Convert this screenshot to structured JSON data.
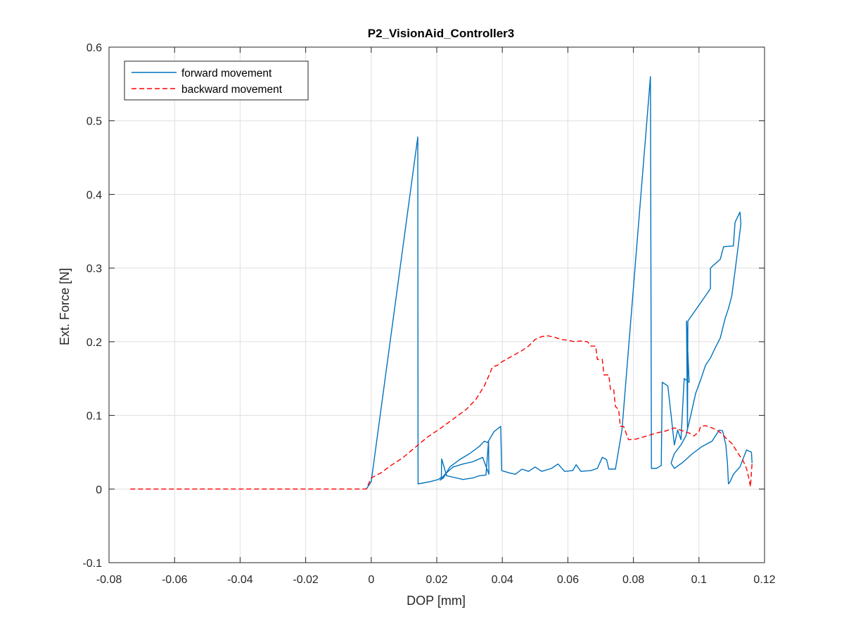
{
  "chart_data": {
    "type": "line",
    "title": "P2_VisionAid_Controller3",
    "xlabel": "DOP [mm]",
    "ylabel": "Ext. Force [N]",
    "xlim": [
      -0.08,
      0.12
    ],
    "ylim": [
      -0.1,
      0.6
    ],
    "xticks": [
      -0.08,
      -0.06,
      -0.04,
      -0.02,
      0,
      0.02,
      0.04,
      0.06,
      0.08,
      0.1,
      0.12
    ],
    "xtick_labels": [
      "-0.08",
      "-0.06",
      "-0.04",
      "-0.02",
      "0",
      "0.02",
      "0.04",
      "0.06",
      "0.08",
      "0.1",
      "0.12"
    ],
    "yticks": [
      -0.1,
      0,
      0.1,
      0.2,
      0.3,
      0.4,
      0.5,
      0.6
    ],
    "ytick_labels": [
      "-0.1",
      "0",
      "0.1",
      "0.2",
      "0.3",
      "0.4",
      "0.5",
      "0.6"
    ],
    "grid": true,
    "legend_position": "top-left",
    "series": [
      {
        "name": "forward movement",
        "color": "#0072BD",
        "style": "solid",
        "points": [
          [
            -0.0015,
            0
          ],
          [
            0,
            0.01
          ],
          [
            0.0142,
            0.478
          ],
          [
            0.0143,
            0.007
          ],
          [
            0.018,
            0.01
          ],
          [
            0.0205,
            0.013
          ],
          [
            0.0214,
            0.016
          ],
          [
            0.0215,
            0.041
          ],
          [
            0.023,
            0.018
          ],
          [
            0.025,
            0.016
          ],
          [
            0.028,
            0.013
          ],
          [
            0.031,
            0.015
          ],
          [
            0.033,
            0.018
          ],
          [
            0.035,
            0.019
          ],
          [
            0.0358,
            0.065
          ],
          [
            0.0359,
            0.02
          ],
          [
            0.034,
            0.043
          ],
          [
            0.031,
            0.037
          ],
          [
            0.028,
            0.034
          ],
          [
            0.025,
            0.03
          ],
          [
            0.0225,
            0.02
          ],
          [
            0.021,
            0.012
          ],
          [
            0.022,
            0.015
          ],
          [
            0.024,
            0.03
          ],
          [
            0.027,
            0.04
          ],
          [
            0.03,
            0.048
          ],
          [
            0.033,
            0.058
          ],
          [
            0.0345,
            0.065
          ],
          [
            0.0355,
            0.063
          ],
          [
            0.0375,
            0.078
          ],
          [
            0.0395,
            0.085
          ],
          [
            0.0398,
            0.025
          ],
          [
            0.042,
            0.022
          ],
          [
            0.044,
            0.02
          ],
          [
            0.046,
            0.027
          ],
          [
            0.048,
            0.024
          ],
          [
            0.05,
            0.03
          ],
          [
            0.052,
            0.024
          ],
          [
            0.055,
            0.028
          ],
          [
            0.057,
            0.034
          ],
          [
            0.059,
            0.024
          ],
          [
            0.0615,
            0.025
          ],
          [
            0.0625,
            0.033
          ],
          [
            0.064,
            0.024
          ],
          [
            0.067,
            0.025
          ],
          [
            0.069,
            0.028
          ],
          [
            0.0705,
            0.043
          ],
          [
            0.0718,
            0.04
          ],
          [
            0.0725,
            0.027
          ],
          [
            0.0745,
            0.027
          ],
          [
            0.0765,
            0.08
          ],
          [
            0.0852,
            0.56
          ],
          [
            0.0855,
            0.028
          ],
          [
            0.087,
            0.028
          ],
          [
            0.0885,
            0.032
          ],
          [
            0.0888,
            0.145
          ],
          [
            0.0905,
            0.14
          ],
          [
            0.0915,
            0.1
          ],
          [
            0.0925,
            0.06
          ],
          [
            0.0935,
            0.08
          ],
          [
            0.0945,
            0.067
          ],
          [
            0.0955,
            0.15
          ],
          [
            0.097,
            0.145
          ],
          [
            0.0962,
            0.228
          ],
          [
            0.0965,
            0.08
          ],
          [
            0.0966,
            0.228
          ],
          [
            0.1035,
            0.272
          ],
          [
            0.1035,
            0.3
          ],
          [
            0.1065,
            0.312
          ],
          [
            0.1075,
            0.329
          ],
          [
            0.1105,
            0.33
          ],
          [
            0.111,
            0.362
          ],
          [
            0.1125,
            0.376
          ],
          [
            0.1128,
            0.36
          ],
          [
            0.112,
            0.331
          ],
          [
            0.111,
            0.296
          ],
          [
            0.11,
            0.262
          ],
          [
            0.109,
            0.245
          ],
          [
            0.108,
            0.232
          ],
          [
            0.1065,
            0.205
          ],
          [
            0.105,
            0.192
          ],
          [
            0.1035,
            0.178
          ],
          [
            0.102,
            0.168
          ],
          [
            0.1005,
            0.148
          ],
          [
            0.099,
            0.13
          ],
          [
            0.0975,
            0.1
          ],
          [
            0.096,
            0.072
          ],
          [
            0.0945,
            0.06
          ],
          [
            0.0935,
            0.054
          ],
          [
            0.0925,
            0.048
          ],
          [
            0.092,
            0.042
          ],
          [
            0.0915,
            0.035
          ],
          [
            0.0925,
            0.028
          ],
          [
            0.095,
            0.036
          ],
          [
            0.098,
            0.048
          ],
          [
            0.101,
            0.058
          ],
          [
            0.104,
            0.065
          ],
          [
            0.1062,
            0.08
          ],
          [
            0.1072,
            0.079
          ],
          [
            0.1082,
            0.06
          ],
          [
            0.1087,
            0.035
          ],
          [
            0.109,
            0.007
          ],
          [
            0.1095,
            0.01
          ],
          [
            0.1105,
            0.02
          ],
          [
            0.1125,
            0.03
          ],
          [
            0.1145,
            0.053
          ],
          [
            0.116,
            0.05
          ],
          [
            0.1162,
            0.035
          ]
        ]
      },
      {
        "name": "backward movement",
        "color": "#FF0000",
        "style": "dashed",
        "points": [
          [
            -0.0735,
            0
          ],
          [
            -0.0015,
            0
          ],
          [
            0,
            0.015
          ],
          [
            0.003,
            0.022
          ],
          [
            0.006,
            0.032
          ],
          [
            0.0095,
            0.042
          ],
          [
            0.013,
            0.055
          ],
          [
            0.017,
            0.07
          ],
          [
            0.021,
            0.082
          ],
          [
            0.025,
            0.095
          ],
          [
            0.029,
            0.108
          ],
          [
            0.032,
            0.122
          ],
          [
            0.0345,
            0.14
          ],
          [
            0.036,
            0.155
          ],
          [
            0.037,
            0.166
          ],
          [
            0.0385,
            0.168
          ],
          [
            0.04,
            0.173
          ],
          [
            0.042,
            0.178
          ],
          [
            0.044,
            0.183
          ],
          [
            0.046,
            0.188
          ],
          [
            0.048,
            0.194
          ],
          [
            0.05,
            0.203
          ],
          [
            0.052,
            0.207
          ],
          [
            0.054,
            0.208
          ],
          [
            0.056,
            0.206
          ],
          [
            0.058,
            0.203
          ],
          [
            0.06,
            0.202
          ],
          [
            0.062,
            0.2
          ],
          [
            0.064,
            0.201
          ],
          [
            0.066,
            0.2
          ],
          [
            0.067,
            0.194
          ],
          [
            0.0685,
            0.194
          ],
          [
            0.069,
            0.176
          ],
          [
            0.0705,
            0.176
          ],
          [
            0.071,
            0.155
          ],
          [
            0.0725,
            0.155
          ],
          [
            0.073,
            0.135
          ],
          [
            0.074,
            0.135
          ],
          [
            0.0745,
            0.112
          ],
          [
            0.0755,
            0.108
          ],
          [
            0.076,
            0.085
          ],
          [
            0.077,
            0.085
          ],
          [
            0.0785,
            0.067
          ],
          [
            0.081,
            0.068
          ],
          [
            0.084,
            0.072
          ],
          [
            0.087,
            0.076
          ],
          [
            0.09,
            0.079
          ],
          [
            0.0925,
            0.083
          ],
          [
            0.095,
            0.079
          ],
          [
            0.097,
            0.076
          ],
          [
            0.0985,
            0.072
          ],
          [
            0.1,
            0.078
          ],
          [
            0.1005,
            0.085
          ],
          [
            0.102,
            0.086
          ],
          [
            0.104,
            0.083
          ],
          [
            0.1055,
            0.08
          ],
          [
            0.107,
            0.075
          ],
          [
            0.1085,
            0.068
          ],
          [
            0.11,
            0.062
          ],
          [
            0.111,
            0.055
          ],
          [
            0.112,
            0.048
          ],
          [
            0.1135,
            0.038
          ],
          [
            0.1145,
            0.028
          ],
          [
            0.1152,
            0.015
          ],
          [
            0.1157,
            0.003
          ],
          [
            0.1162,
            0.035
          ]
        ]
      }
    ]
  }
}
